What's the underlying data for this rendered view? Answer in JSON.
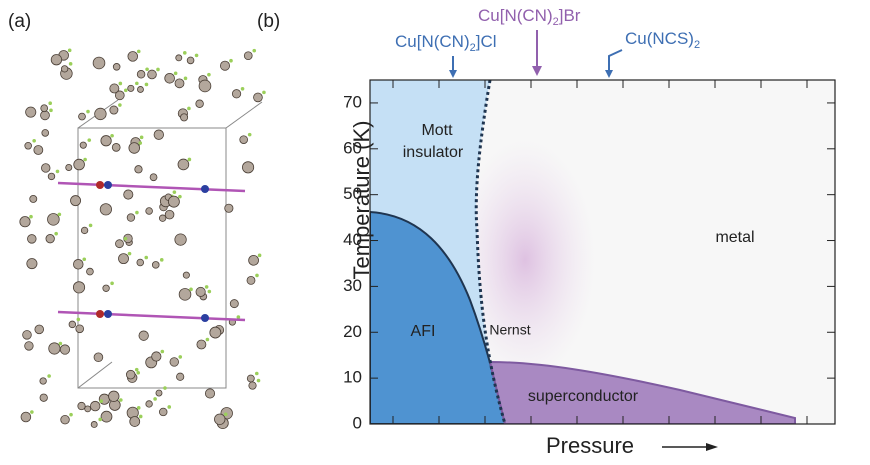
{
  "panel_a": {
    "label": "(a)"
  },
  "panel_b": {
    "label": "(b)",
    "ylabel": "Temperature (K)",
    "xlabel": "Pressure",
    "ylim": [
      0,
      75
    ],
    "yticks": [
      0,
      10,
      20,
      30,
      40,
      50,
      60,
      70
    ],
    "compounds": [
      {
        "main": "Cu[N(CN)",
        "sub": "2",
        "rest": "]Cl"
      },
      {
        "main": "Cu[N(CN)",
        "sub": "2",
        "rest": "]Br"
      },
      {
        "main": "Cu(NCS)",
        "sub": "2",
        "rest": ""
      }
    ],
    "regions": {
      "mott_line1": "Mott",
      "mott_line2": "insulator",
      "metal": "metal",
      "afi": "AFI",
      "nernst": "Nernst",
      "superconductor": "superconductor"
    }
  }
}
